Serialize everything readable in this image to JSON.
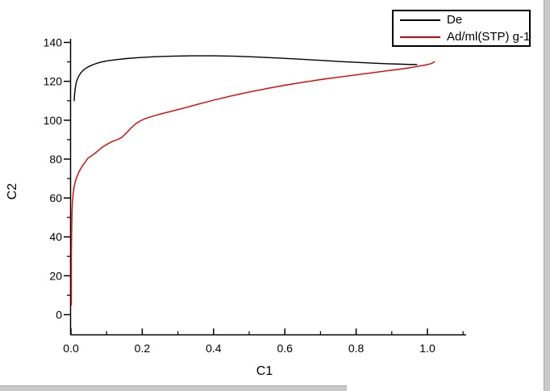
{
  "chart_data": {
    "type": "line",
    "title": "",
    "xlabel": "C1",
    "ylabel": "C2",
    "xlim": [
      0,
      1.11
    ],
    "ylim": [
      -10,
      142
    ],
    "grid": false,
    "legend_position": "top-right",
    "x_ticks_major": [
      0.0,
      0.2,
      0.4,
      0.6,
      0.8,
      1.0
    ],
    "x_tick_labels": [
      "0.0",
      "0.2",
      "0.4",
      "0.6",
      "0.8",
      "1.0"
    ],
    "x_ticks_minor": [
      0.1,
      0.3,
      0.5,
      0.7,
      0.9,
      1.1
    ],
    "y_ticks_major": [
      0,
      20,
      40,
      60,
      80,
      100,
      120,
      140
    ],
    "y_tick_labels": [
      "0",
      "20",
      "40",
      "60",
      "80",
      "100",
      "120",
      "140"
    ],
    "y_ticks_minor": [
      10,
      30,
      50,
      70,
      90,
      110,
      130
    ],
    "axis_color": "#000000",
    "series": [
      {
        "name": "De",
        "color": "#000000",
        "points": [
          [
            0.009,
            110
          ],
          [
            0.01,
            113
          ],
          [
            0.012,
            116.5
          ],
          [
            0.015,
            119.5
          ],
          [
            0.02,
            122
          ],
          [
            0.027,
            124.2
          ],
          [
            0.036,
            126
          ],
          [
            0.048,
            127.4
          ],
          [
            0.062,
            128.6
          ],
          [
            0.08,
            129.7
          ],
          [
            0.1,
            130.5
          ],
          [
            0.125,
            131.1
          ],
          [
            0.155,
            131.7
          ],
          [
            0.19,
            132.2
          ],
          [
            0.23,
            132.6
          ],
          [
            0.28,
            132.9
          ],
          [
            0.34,
            133.1
          ],
          [
            0.4,
            133.1
          ],
          [
            0.46,
            132.9
          ],
          [
            0.52,
            132.5
          ],
          [
            0.58,
            132.0
          ],
          [
            0.64,
            131.4
          ],
          [
            0.7,
            130.8
          ],
          [
            0.76,
            130.1
          ],
          [
            0.82,
            129.6
          ],
          [
            0.88,
            129.1
          ],
          [
            0.93,
            128.8
          ],
          [
            0.97,
            128.6
          ]
        ]
      },
      {
        "name": "Ad/ml(STP) g-1",
        "color": "#e00000",
        "points": [
          [
            0.001,
            5
          ],
          [
            0.001,
            30
          ],
          [
            0.002,
            45
          ],
          [
            0.003,
            53
          ],
          [
            0.004,
            58
          ],
          [
            0.006,
            62
          ],
          [
            0.009,
            66
          ],
          [
            0.013,
            69
          ],
          [
            0.018,
            71.5
          ],
          [
            0.024,
            74
          ],
          [
            0.032,
            76.5
          ],
          [
            0.04,
            78.5
          ],
          [
            0.048,
            80.5
          ],
          [
            0.056,
            81.5
          ],
          [
            0.064,
            82.5
          ],
          [
            0.074,
            84
          ],
          [
            0.087,
            86
          ],
          [
            0.1,
            87.5
          ],
          [
            0.115,
            89
          ],
          [
            0.13,
            90
          ],
          [
            0.143,
            91.2
          ],
          [
            0.157,
            93.8
          ],
          [
            0.17,
            96.2
          ],
          [
            0.182,
            98.2
          ],
          [
            0.194,
            99.6
          ],
          [
            0.208,
            100.8
          ],
          [
            0.228,
            102
          ],
          [
            0.252,
            103.2
          ],
          [
            0.282,
            104.6
          ],
          [
            0.32,
            106.4
          ],
          [
            0.36,
            108.4
          ],
          [
            0.4,
            110.3
          ],
          [
            0.45,
            112.5
          ],
          [
            0.5,
            114.5
          ],
          [
            0.55,
            116.3
          ],
          [
            0.6,
            118.0
          ],
          [
            0.65,
            119.5
          ],
          [
            0.7,
            120.9
          ],
          [
            0.75,
            122.1
          ],
          [
            0.8,
            123.3
          ],
          [
            0.85,
            124.5
          ],
          [
            0.89,
            125.5
          ],
          [
            0.925,
            126.3
          ],
          [
            0.955,
            127.1
          ],
          [
            0.98,
            127.9
          ],
          [
            1.0,
            128.6
          ],
          [
            1.012,
            129.2
          ],
          [
            1.02,
            130.1
          ]
        ]
      }
    ]
  },
  "window": {
    "scrollbar_color": "#c9c9c9"
  }
}
